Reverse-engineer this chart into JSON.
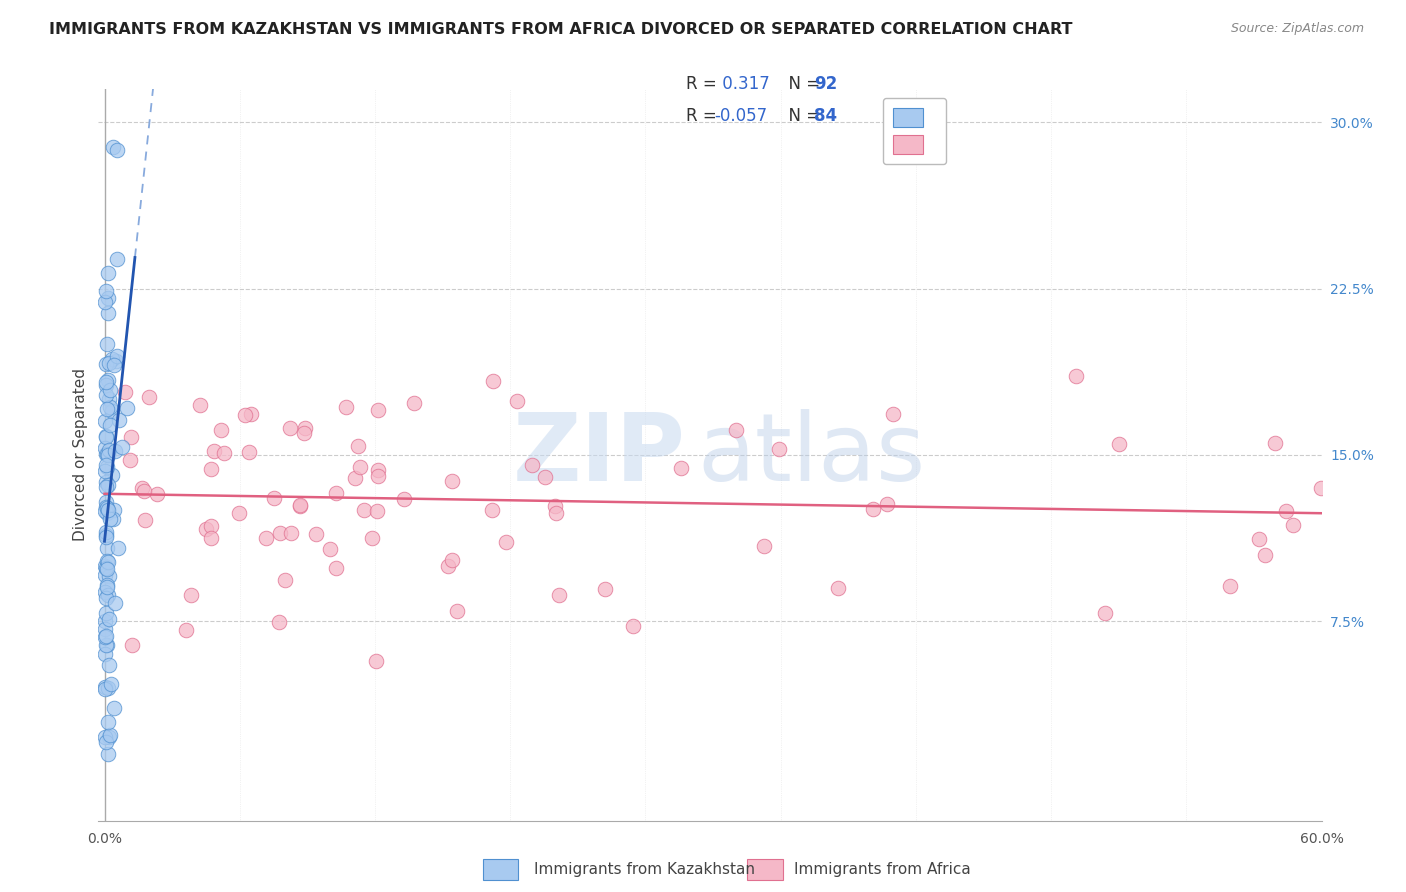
{
  "title": "IMMIGRANTS FROM KAZAKHSTAN VS IMMIGRANTS FROM AFRICA DIVORCED OR SEPARATED CORRELATION CHART",
  "source": "Source: ZipAtlas.com",
  "ylabel_label": "Divorced or Separated",
  "xlim": [
    -0.3,
    60.0
  ],
  "ylim": [
    -1.5,
    31.5
  ],
  "ytick_vals": [
    7.5,
    15.0,
    22.5,
    30.0
  ],
  "R_kaz": 0.317,
  "N_kaz": 92,
  "R_afr": -0.057,
  "N_afr": 84,
  "color_kaz_fill": "#a8caf0",
  "color_kaz_edge": "#5090d0",
  "color_afr_fill": "#f5b8c8",
  "color_afr_edge": "#e07090",
  "color_kaz_line": "#2255b0",
  "color_afr_line": "#e06080",
  "color_kaz_dash": "#88aadd",
  "legend_label_kaz": "Immigrants from Kazakhstan",
  "legend_label_afr": "Immigrants from Africa",
  "watermark_zip": "ZIP",
  "watermark_atlas": "atlas"
}
